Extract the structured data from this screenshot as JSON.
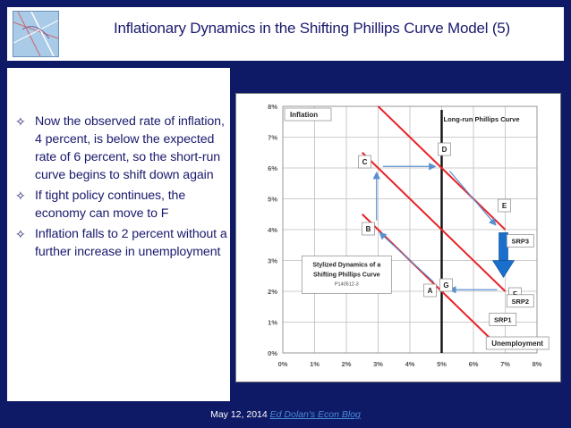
{
  "header": {
    "title": "Inflationary Dynamics in the Shifting Phillips Curve Model (5)"
  },
  "bullets": [
    "Now the observed rate of inflation, 4 percent, is below the expected rate of 6 percent, so the short-run curve begins to shift down again",
    "If tight policy continues, the economy can move to F",
    "Inflation falls to 2 percent without a further increase in unemployment"
  ],
  "footer": {
    "date": "May 12, 2014",
    "link_text": "Ed Dolan's Econ Blog"
  },
  "chart_data": {
    "type": "line",
    "ylabel": "Inflation",
    "xlabel": "Unemployment",
    "x_ticks": [
      "0%",
      "1%",
      "2%",
      "3%",
      "4%",
      "5%",
      "6%",
      "7%",
      "8%"
    ],
    "y_ticks": [
      "0%",
      "1%",
      "2%",
      "3%",
      "4%",
      "5%",
      "6%",
      "7%",
      "8%"
    ],
    "xlim": [
      0,
      8
    ],
    "ylim": [
      0,
      8
    ],
    "lrpc": {
      "label": "Long-run Phillips Curve",
      "x": 5
    },
    "series": [
      {
        "name": "SRP1",
        "points": [
          [
            2.5,
            4.5
          ],
          [
            6.5,
            0.5
          ]
        ]
      },
      {
        "name": "SRP2",
        "points": [
          [
            2.5,
            6.5
          ],
          [
            7.0,
            2.0
          ]
        ]
      },
      {
        "name": "SRP3",
        "points": [
          [
            3.0,
            8.0
          ],
          [
            7.0,
            4.0
          ]
        ]
      }
    ],
    "points": [
      {
        "label": "A",
        "x": 5,
        "y": 2
      },
      {
        "label": "B",
        "x": 3,
        "y": 4
      },
      {
        "label": "C",
        "x": 3,
        "y": 6
      },
      {
        "label": "D",
        "x": 5,
        "y": 6
      },
      {
        "label": "E",
        "x": 7,
        "y": 4
      },
      {
        "label": "F",
        "x": 7,
        "y": 2
      },
      {
        "label": "G",
        "x": 5,
        "y": 2
      }
    ],
    "box_title": "Stylized Dynamics of a Shifting Phillips Curve",
    "box_code": "P140512-3",
    "grid": true
  }
}
